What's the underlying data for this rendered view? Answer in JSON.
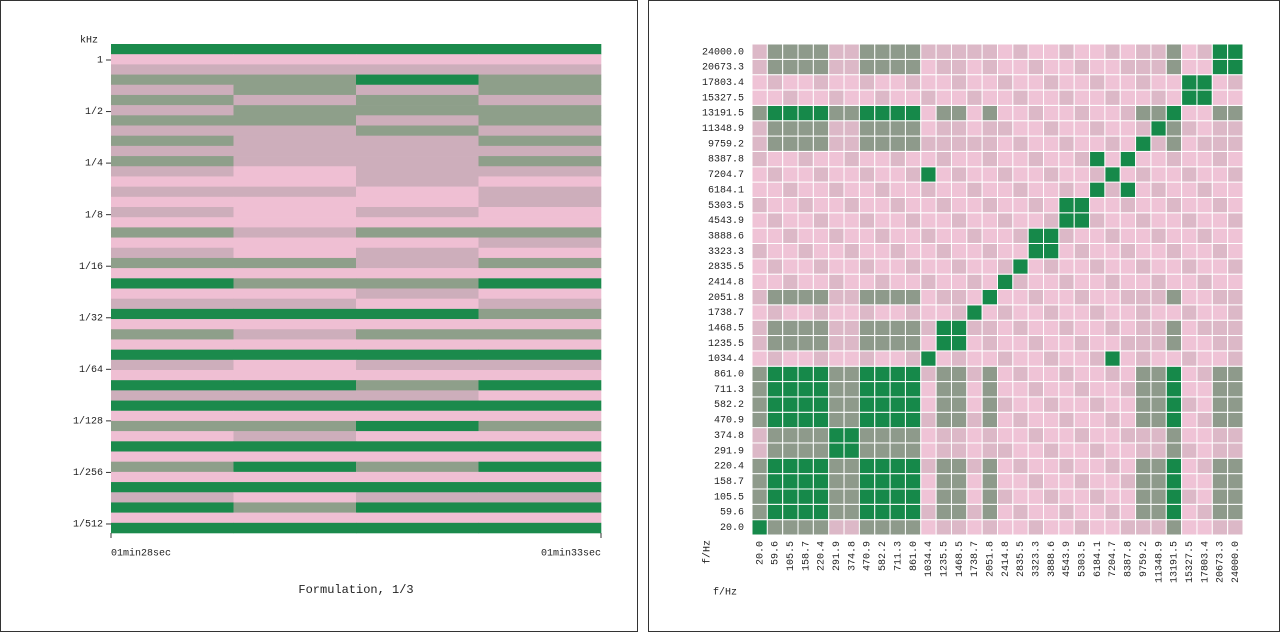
{
  "chart_data": [
    {
      "type": "stripes",
      "title": "Formulation, 1/3",
      "ylabel": "kHz",
      "log_y": true,
      "ylim": [
        0.00173,
        1.24
      ],
      "yticks": [
        {
          "value": 1,
          "label": "1"
        },
        {
          "value": 0.5,
          "label": "1/2"
        },
        {
          "value": 0.25,
          "label": "1/4"
        },
        {
          "value": 0.125,
          "label": "1/8"
        },
        {
          "value": 0.0625,
          "label": "1/16"
        },
        {
          "value": 0.03125,
          "label": "1/32"
        },
        {
          "value": 0.015625,
          "label": "1/64"
        },
        {
          "value": 0.0078125,
          "label": "1/128"
        },
        {
          "value": 0.00390625,
          "label": "1/256"
        },
        {
          "value": 0.001953125,
          "label": "1/512"
        }
      ],
      "xlim": [
        88,
        93
      ],
      "xticks": [
        {
          "value": 88,
          "label": "01min28sec"
        },
        {
          "value": 93,
          "label": "01min33sec"
        }
      ],
      "colors": [
        "#efbfd3",
        "#cdaebb",
        "#8e9f8a",
        "#1b8a4c"
      ],
      "z": [
        [
          3,
          3,
          3,
          3
        ],
        [
          0,
          0,
          0,
          0
        ],
        [
          1,
          1,
          1,
          1
        ],
        [
          2,
          2,
          3,
          2
        ],
        [
          1,
          2,
          1,
          2
        ],
        [
          2,
          1,
          2,
          1
        ],
        [
          1,
          2,
          2,
          2
        ],
        [
          2,
          2,
          1,
          2
        ],
        [
          1,
          1,
          2,
          1
        ],
        [
          2,
          1,
          1,
          2
        ],
        [
          1,
          1,
          1,
          1
        ],
        [
          2,
          1,
          1,
          2
        ],
        [
          1,
          0,
          1,
          1
        ],
        [
          0,
          0,
          1,
          0
        ],
        [
          1,
          1,
          0,
          1
        ],
        [
          0,
          0,
          0,
          1
        ],
        [
          1,
          0,
          1,
          0
        ],
        [
          0,
          0,
          0,
          0
        ],
        [
          2,
          1,
          2,
          2
        ],
        [
          0,
          0,
          0,
          1
        ],
        [
          1,
          0,
          1,
          0
        ],
        [
          2,
          2,
          1,
          2
        ],
        [
          0,
          0,
          0,
          0
        ],
        [
          3,
          2,
          2,
          3
        ],
        [
          0,
          0,
          1,
          0
        ],
        [
          1,
          1,
          0,
          1
        ],
        [
          3,
          3,
          3,
          2
        ],
        [
          0,
          0,
          0,
          0
        ],
        [
          2,
          1,
          2,
          2
        ],
        [
          0,
          0,
          0,
          0
        ],
        [
          3,
          3,
          3,
          3
        ],
        [
          1,
          0,
          1,
          1
        ],
        [
          0,
          0,
          0,
          0
        ],
        [
          3,
          3,
          2,
          3
        ],
        [
          1,
          1,
          1,
          0
        ],
        [
          3,
          3,
          3,
          3
        ],
        [
          0,
          0,
          0,
          0
        ],
        [
          2,
          2,
          3,
          2
        ],
        [
          0,
          1,
          0,
          0
        ],
        [
          3,
          3,
          3,
          3
        ],
        [
          0,
          0,
          0,
          0
        ],
        [
          2,
          3,
          2,
          3
        ],
        [
          0,
          0,
          0,
          0
        ],
        [
          3,
          3,
          3,
          3
        ],
        [
          1,
          0,
          1,
          1
        ],
        [
          3,
          2,
          3,
          3
        ],
        [
          0,
          0,
          0,
          0
        ],
        [
          3,
          3,
          3,
          3
        ]
      ]
    },
    {
      "type": "heatmap",
      "xlabel": "f/Hz",
      "ylabel": "f/Hz",
      "categories": [
        "20.0",
        "59.6",
        "105.5",
        "158.7",
        "220.4",
        "291.9",
        "374.8",
        "470.9",
        "582.2",
        "711.3",
        "861.0",
        "1034.4",
        "1235.5",
        "1468.5",
        "1738.7",
        "2051.8",
        "2414.8",
        "2835.5",
        "3323.3",
        "3888.6",
        "4543.9",
        "5303.5",
        "6184.1",
        "7204.7",
        "8387.8",
        "9759.2",
        "11348.9",
        "13191.5",
        "15327.5",
        "17803.4",
        "20673.3",
        "24000.0"
      ],
      "colors": [
        "#efc3d6",
        "#dcb8c7",
        "#8e9a8b",
        "#16894a"
      ],
      "z": [
        [
          3,
          2,
          2,
          2,
          2,
          1,
          1,
          2,
          2,
          2,
          2,
          0,
          1,
          1,
          0,
          1,
          0,
          0,
          1,
          0,
          0,
          1,
          0,
          0,
          1,
          1,
          1,
          2,
          0,
          0,
          1,
          1
        ],
        [
          2,
          3,
          3,
          3,
          3,
          2,
          2,
          3,
          3,
          3,
          3,
          1,
          2,
          2,
          1,
          2,
          0,
          1,
          0,
          0,
          1,
          0,
          0,
          1,
          0,
          2,
          2,
          3,
          0,
          1,
          2,
          2
        ],
        [
          2,
          3,
          3,
          3,
          3,
          2,
          2,
          3,
          3,
          3,
          3,
          0,
          2,
          2,
          0,
          2,
          1,
          0,
          0,
          1,
          0,
          0,
          1,
          0,
          0,
          2,
          2,
          3,
          1,
          0,
          2,
          2
        ],
        [
          2,
          3,
          3,
          3,
          3,
          2,
          2,
          3,
          3,
          3,
          3,
          0,
          2,
          2,
          0,
          2,
          0,
          0,
          1,
          0,
          0,
          1,
          0,
          0,
          1,
          2,
          2,
          3,
          0,
          0,
          2,
          2
        ],
        [
          2,
          3,
          3,
          3,
          3,
          2,
          2,
          3,
          3,
          3,
          3,
          1,
          2,
          2,
          1,
          2,
          0,
          1,
          0,
          0,
          1,
          0,
          0,
          1,
          0,
          2,
          2,
          3,
          0,
          1,
          2,
          2
        ],
        [
          1,
          2,
          2,
          2,
          2,
          3,
          3,
          2,
          2,
          2,
          2,
          0,
          1,
          1,
          0,
          1,
          1,
          0,
          0,
          1,
          0,
          0,
          1,
          0,
          0,
          1,
          1,
          2,
          1,
          0,
          1,
          1
        ],
        [
          1,
          2,
          2,
          2,
          2,
          3,
          3,
          2,
          2,
          2,
          2,
          0,
          1,
          1,
          0,
          1,
          0,
          0,
          1,
          0,
          0,
          1,
          0,
          0,
          1,
          1,
          1,
          2,
          0,
          0,
          1,
          1
        ],
        [
          2,
          3,
          3,
          3,
          3,
          2,
          2,
          3,
          3,
          3,
          3,
          1,
          2,
          2,
          1,
          2,
          0,
          1,
          0,
          0,
          1,
          0,
          0,
          1,
          0,
          2,
          2,
          3,
          0,
          1,
          2,
          2
        ],
        [
          2,
          3,
          3,
          3,
          3,
          2,
          2,
          3,
          3,
          3,
          3,
          0,
          2,
          2,
          0,
          2,
          1,
          0,
          0,
          1,
          0,
          0,
          1,
          0,
          0,
          2,
          2,
          3,
          1,
          0,
          2,
          2
        ],
        [
          2,
          3,
          3,
          3,
          3,
          2,
          2,
          3,
          3,
          3,
          3,
          0,
          2,
          2,
          0,
          2,
          0,
          0,
          1,
          0,
          0,
          1,
          0,
          0,
          1,
          2,
          2,
          3,
          0,
          0,
          2,
          2
        ],
        [
          2,
          3,
          3,
          3,
          3,
          2,
          2,
          3,
          3,
          3,
          3,
          1,
          2,
          2,
          1,
          2,
          0,
          1,
          0,
          0,
          1,
          0,
          0,
          1,
          0,
          2,
          2,
          3,
          0,
          1,
          2,
          2
        ],
        [
          0,
          1,
          0,
          0,
          1,
          0,
          0,
          1,
          0,
          0,
          1,
          3,
          0,
          1,
          0,
          0,
          1,
          0,
          0,
          1,
          0,
          0,
          1,
          3,
          0,
          1,
          0,
          0,
          1,
          0,
          0,
          1
        ],
        [
          1,
          2,
          2,
          2,
          2,
          1,
          1,
          2,
          2,
          2,
          2,
          0,
          3,
          3,
          0,
          1,
          0,
          0,
          1,
          0,
          0,
          1,
          0,
          0,
          1,
          1,
          1,
          2,
          0,
          0,
          1,
          1
        ],
        [
          1,
          2,
          2,
          2,
          2,
          1,
          1,
          2,
          2,
          2,
          2,
          1,
          3,
          3,
          1,
          1,
          0,
          1,
          0,
          0,
          1,
          0,
          0,
          1,
          0,
          1,
          1,
          2,
          0,
          1,
          1,
          1
        ],
        [
          0,
          1,
          0,
          0,
          1,
          0,
          0,
          1,
          0,
          0,
          1,
          0,
          0,
          1,
          3,
          0,
          1,
          0,
          0,
          1,
          0,
          0,
          1,
          0,
          0,
          1,
          0,
          0,
          1,
          0,
          0,
          1
        ],
        [
          1,
          2,
          2,
          2,
          2,
          1,
          1,
          2,
          2,
          2,
          2,
          0,
          1,
          1,
          0,
          3,
          0,
          0,
          1,
          0,
          0,
          1,
          0,
          0,
          1,
          1,
          1,
          2,
          0,
          0,
          1,
          1
        ],
        [
          0,
          0,
          1,
          0,
          0,
          1,
          0,
          0,
          1,
          0,
          0,
          1,
          0,
          0,
          1,
          0,
          3,
          1,
          0,
          0,
          1,
          0,
          0,
          1,
          0,
          0,
          1,
          0,
          0,
          1,
          0,
          0
        ],
        [
          0,
          1,
          0,
          0,
          1,
          0,
          0,
          1,
          0,
          0,
          1,
          0,
          0,
          1,
          0,
          0,
          1,
          3,
          0,
          1,
          0,
          0,
          1,
          0,
          0,
          1,
          0,
          0,
          1,
          0,
          0,
          1
        ],
        [
          1,
          0,
          0,
          1,
          0,
          0,
          1,
          0,
          0,
          1,
          0,
          0,
          1,
          0,
          0,
          1,
          0,
          0,
          3,
          3,
          0,
          1,
          0,
          0,
          1,
          0,
          0,
          1,
          0,
          0,
          1,
          0
        ],
        [
          0,
          0,
          1,
          0,
          0,
          1,
          0,
          0,
          1,
          0,
          0,
          1,
          0,
          0,
          1,
          0,
          0,
          1,
          3,
          3,
          1,
          0,
          0,
          1,
          0,
          0,
          1,
          0,
          0,
          1,
          0,
          0
        ],
        [
          0,
          1,
          0,
          0,
          1,
          0,
          0,
          1,
          0,
          0,
          1,
          0,
          0,
          1,
          0,
          0,
          1,
          0,
          0,
          1,
          3,
          3,
          1,
          0,
          0,
          1,
          0,
          0,
          1,
          0,
          0,
          1
        ],
        [
          1,
          0,
          0,
          1,
          0,
          0,
          1,
          0,
          0,
          1,
          0,
          0,
          1,
          0,
          0,
          1,
          0,
          0,
          1,
          0,
          3,
          3,
          0,
          0,
          1,
          0,
          0,
          1,
          0,
          0,
          1,
          0
        ],
        [
          0,
          0,
          1,
          0,
          0,
          1,
          0,
          0,
          1,
          0,
          0,
          1,
          0,
          0,
          1,
          0,
          0,
          1,
          0,
          0,
          1,
          0,
          3,
          1,
          3,
          0,
          1,
          0,
          0,
          1,
          0,
          0
        ],
        [
          0,
          1,
          0,
          0,
          1,
          0,
          0,
          1,
          0,
          0,
          1,
          3,
          0,
          1,
          0,
          0,
          1,
          0,
          0,
          1,
          0,
          0,
          1,
          3,
          0,
          1,
          0,
          0,
          1,
          0,
          0,
          1
        ],
        [
          1,
          0,
          0,
          1,
          0,
          0,
          1,
          0,
          0,
          1,
          0,
          0,
          1,
          0,
          0,
          1,
          0,
          0,
          1,
          0,
          0,
          1,
          3,
          0,
          3,
          0,
          0,
          1,
          0,
          0,
          1,
          0
        ],
        [
          1,
          2,
          2,
          2,
          2,
          1,
          1,
          2,
          2,
          2,
          2,
          1,
          1,
          1,
          1,
          1,
          0,
          1,
          0,
          0,
          1,
          0,
          0,
          1,
          0,
          3,
          1,
          2,
          0,
          1,
          1,
          1
        ],
        [
          1,
          2,
          2,
          2,
          2,
          1,
          1,
          2,
          2,
          2,
          2,
          0,
          1,
          1,
          0,
          1,
          1,
          0,
          0,
          1,
          0,
          0,
          1,
          0,
          0,
          1,
          3,
          2,
          1,
          0,
          1,
          1
        ],
        [
          2,
          3,
          3,
          3,
          3,
          2,
          2,
          3,
          3,
          3,
          3,
          0,
          2,
          2,
          0,
          2,
          0,
          0,
          1,
          0,
          0,
          1,
          0,
          0,
          1,
          2,
          2,
          3,
          0,
          0,
          2,
          2
        ],
        [
          0,
          0,
          1,
          0,
          0,
          1,
          0,
          0,
          1,
          0,
          0,
          1,
          0,
          0,
          1,
          0,
          0,
          1,
          0,
          0,
          1,
          0,
          0,
          1,
          0,
          0,
          1,
          0,
          3,
          3,
          0,
          0
        ],
        [
          0,
          1,
          0,
          0,
          1,
          0,
          0,
          1,
          0,
          0,
          1,
          0,
          0,
          1,
          0,
          0,
          1,
          0,
          0,
          1,
          0,
          0,
          1,
          0,
          0,
          1,
          0,
          0,
          3,
          3,
          0,
          1
        ],
        [
          1,
          2,
          2,
          2,
          2,
          1,
          1,
          2,
          2,
          2,
          2,
          0,
          1,
          1,
          0,
          1,
          0,
          0,
          1,
          0,
          0,
          1,
          0,
          0,
          1,
          1,
          1,
          2,
          0,
          0,
          3,
          3
        ],
        [
          1,
          2,
          2,
          2,
          2,
          1,
          1,
          2,
          2,
          2,
          2,
          1,
          1,
          1,
          1,
          1,
          0,
          1,
          0,
          0,
          1,
          0,
          0,
          1,
          0,
          1,
          1,
          2,
          0,
          1,
          3,
          3
        ]
      ]
    }
  ]
}
